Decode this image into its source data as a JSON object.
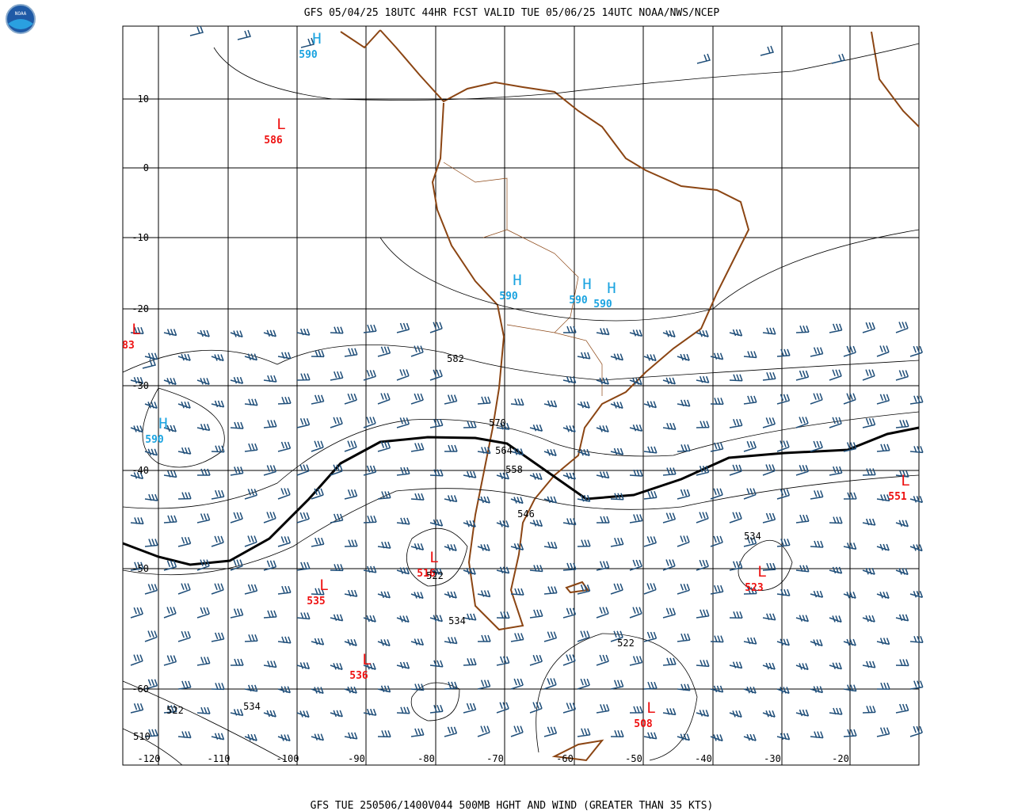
{
  "header": {
    "title": "GFS 05/04/25 18UTC 44HR FCST VALID TUE 05/06/25 14UTC NOAA/NWS/NCEP"
  },
  "footer": {
    "caption": "GFS TUE 250506/1400V044 500MB HGHT AND WIND (GREATER THAN 35 KTS)"
  },
  "logo": {
    "text": "NOAA"
  },
  "map": {
    "lat_labels": [
      "10",
      "0",
      "-10",
      "-20",
      "-30",
      "-40",
      "-50",
      "-60"
    ],
    "lon_labels": [
      "-120",
      "-110",
      "-100",
      "-90",
      "-80",
      "-70",
      "-60",
      "-50",
      "-40",
      "-30",
      "-20"
    ],
    "highs": [
      {
        "symbol": "H",
        "label": "590"
      },
      {
        "symbol": "H",
        "label": "590"
      },
      {
        "symbol": "H",
        "label": "590"
      },
      {
        "symbol": "H",
        "label": "590"
      },
      {
        "symbol": "H",
        "label": "590"
      }
    ],
    "lows": [
      {
        "symbol": "L",
        "label": "586"
      },
      {
        "symbol": "L",
        "label": "83"
      },
      {
        "symbol": "L",
        "label": "516"
      },
      {
        "symbol": "L",
        "label": "535"
      },
      {
        "symbol": "L",
        "label": "536"
      },
      {
        "symbol": "L",
        "label": "523"
      },
      {
        "symbol": "L",
        "label": "508"
      },
      {
        "symbol": "L",
        "label": "551"
      }
    ],
    "contour_labels": [
      "582",
      "570",
      "564",
      "558",
      "546",
      "522",
      "534",
      "522",
      "534",
      "522",
      "534",
      "510"
    ]
  }
}
